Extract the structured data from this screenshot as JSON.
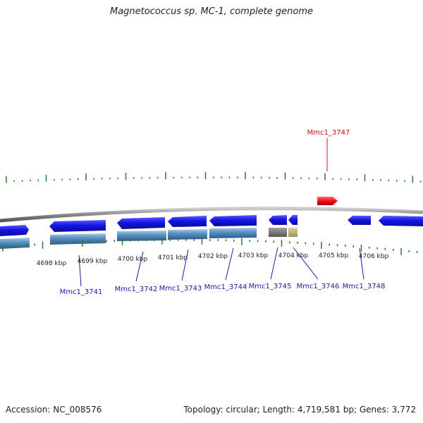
{
  "title": "Magnetococcus sp. MC-1, complete genome",
  "footer": {
    "accession": "Accession: NC_008576",
    "summary": "Topology: circular; Length: 4,719,581 bp; Genes: 3,772"
  },
  "colors": {
    "forward_cds": "#1010e0",
    "rna_gene": "#4f86b8",
    "highlight_gene": "#e81010",
    "tick": "#2a7a2a",
    "gene_label": "#1a1aa0",
    "highlight_label": "#cc1010",
    "backbone": "#8a8a8a"
  },
  "scale": {
    "tick_labels": [
      "4698 kbp",
      "4699 kbp",
      "4700 kbp",
      "4701 kbp",
      "4702 kbp",
      "4703 kbp",
      "4704 kbp",
      "4705 kbp",
      "4706 kbp"
    ]
  },
  "labels": {
    "highlight": "Mmc1_3747",
    "genes": [
      "Mmc1_3741",
      "Mmc1_3742",
      "Mmc1_3743",
      "Mmc1_3744",
      "Mmc1_3745",
      "Mmc1_3746",
      "Mmc1_3748"
    ]
  }
}
